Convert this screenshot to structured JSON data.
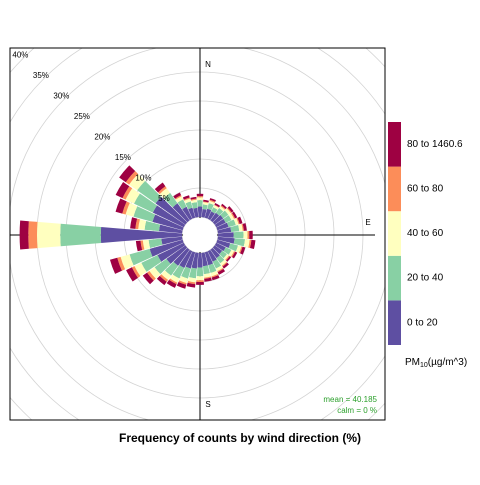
{
  "chart_data": {
    "type": "pollution-rose",
    "xlabel": "Frequency of counts by wind direction (%)",
    "directions": [
      10,
      20,
      30,
      40,
      50,
      60,
      70,
      80,
      90,
      100,
      110,
      120,
      130,
      140,
      150,
      160,
      170,
      180,
      190,
      200,
      210,
      220,
      230,
      240,
      250,
      260,
      270,
      280,
      290,
      300,
      310,
      320,
      330,
      340,
      350,
      360
    ],
    "direction_labels": [
      {
        "value": 0,
        "label": "N"
      },
      {
        "value": 90,
        "label": "E"
      },
      {
        "value": 180,
        "label": "S"
      }
    ],
    "rlim": [
      0,
      40
    ],
    "rticks": [
      {
        "value": 5,
        "label": "5%"
      },
      {
        "value": 10,
        "label": "10%"
      },
      {
        "value": 15,
        "label": "15%"
      },
      {
        "value": 20,
        "label": "20%"
      },
      {
        "value": 25,
        "label": "25%"
      },
      {
        "value": 30,
        "label": "30%"
      },
      {
        "value": 35,
        "label": "35%"
      },
      {
        "value": 40,
        "label": "40%"
      }
    ],
    "grid": true,
    "legend_title": [
      "PM",
      "10",
      "(µg/m^3)"
    ],
    "series": [
      {
        "name": "0 to 20",
        "color": "#5e4fa2",
        "values": [
          1.4,
          1.6,
          1.4,
          1.6,
          1.8,
          1.8,
          2.0,
          2.3,
          2.7,
          2.9,
          2.3,
          1.8,
          1.6,
          1.8,
          2.0,
          2.3,
          2.3,
          2.5,
          2.7,
          2.9,
          3.2,
          3.4,
          4.0,
          5.0,
          5.9,
          3.6,
          14,
          4.0,
          5.4,
          5.9,
          6.3,
          3.6,
          2.3,
          1.8,
          1.6,
          1.8
        ]
      },
      {
        "name": "20 to 40",
        "color": "#88d0a4",
        "values": [
          0.8,
          1.0,
          0.8,
          1.0,
          1.1,
          1.1,
          1.3,
          1.4,
          1.7,
          1.8,
          1.4,
          1.1,
          1.0,
          1.1,
          1.3,
          1.4,
          1.4,
          1.5,
          1.7,
          1.8,
          2.0,
          2.1,
          2.5,
          3.1,
          3.6,
          2.2,
          7,
          2.5,
          3.4,
          3.6,
          3.9,
          2.2,
          1.4,
          1.1,
          1.0,
          1.1
        ]
      },
      {
        "name": "40 to 60",
        "color": "#ffffbf",
        "values": [
          0.4,
          0.4,
          0.4,
          0.4,
          0.5,
          0.5,
          0.5,
          0.6,
          0.7,
          0.8,
          0.6,
          0.5,
          0.4,
          0.5,
          0.5,
          0.6,
          0.6,
          0.7,
          0.7,
          0.8,
          0.8,
          0.9,
          1.1,
          1.3,
          1.6,
          1.0,
          4,
          1.1,
          1.4,
          1.6,
          1.7,
          1.0,
          0.6,
          0.5,
          0.4,
          0.5
        ]
      },
      {
        "name": "60 to 80",
        "color": "#fc8d59",
        "values": [
          0.1,
          0.2,
          0.1,
          0.2,
          0.2,
          0.2,
          0.2,
          0.2,
          0.3,
          0.3,
          0.2,
          0.2,
          0.2,
          0.2,
          0.2,
          0.2,
          0.2,
          0.3,
          0.3,
          0.3,
          0.3,
          0.4,
          0.5,
          0.5,
          0.6,
          0.4,
          1.5,
          0.5,
          0.6,
          0.6,
          0.7,
          0.4,
          0.2,
          0.2,
          0.2,
          0.2
        ]
      },
      {
        "name": "80 to 1460.6",
        "color": "#9e0142",
        "values": [
          0.3,
          0.3,
          0.3,
          0.3,
          0.4,
          0.4,
          0.5,
          0.5,
          0.6,
          0.7,
          0.5,
          0.4,
          0.3,
          0.4,
          0.5,
          0.5,
          0.5,
          0.5,
          0.6,
          0.7,
          0.7,
          0.7,
          0.9,
          1.1,
          1.3,
          0.8,
          1.5,
          0.9,
          1.2,
          1.3,
          1.4,
          0.8,
          0.5,
          0.4,
          0.3,
          0.4
        ]
      }
    ],
    "stats": [
      "mean =  40.185",
      "calm =  0 %"
    ],
    "stats_color": "#2ca02c"
  }
}
